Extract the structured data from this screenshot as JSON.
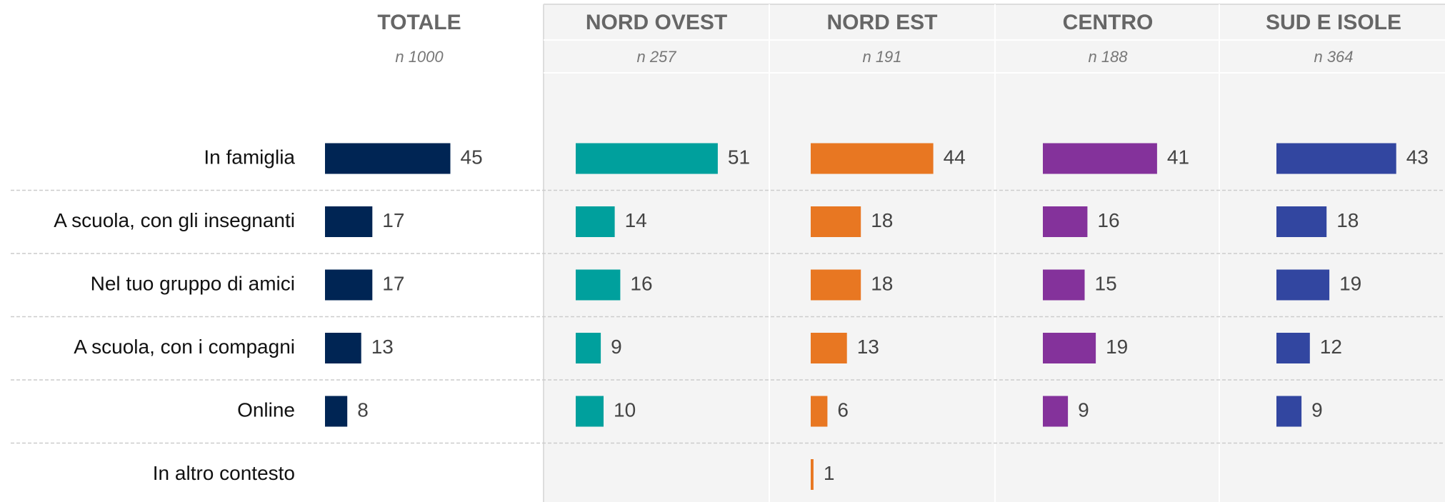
{
  "chart_data": {
    "type": "bar",
    "categories": [
      "In famiglia",
      "A scuola, con gli insegnanti",
      "Nel tuo gruppo di amici",
      "A scuola, con i compagni",
      "Online",
      "In altro contesto"
    ],
    "series": [
      {
        "name": "TOTALE",
        "note": "n 1000",
        "color": "#002554",
        "values": [
          45,
          17,
          17,
          13,
          8,
          null
        ]
      },
      {
        "name": "NORD OVEST",
        "note": "n 257",
        "color": "#00a09d",
        "values": [
          51,
          14,
          16,
          9,
          10,
          null
        ]
      },
      {
        "name": "NORD EST",
        "note": "n 191",
        "color": "#e87722",
        "values": [
          44,
          18,
          18,
          13,
          6,
          1
        ]
      },
      {
        "name": "CENTRO",
        "note": "n 188",
        "color": "#84329b",
        "values": [
          41,
          16,
          15,
          19,
          9,
          null
        ]
      },
      {
        "name": "SUD E ISOLE",
        "note": "n 364",
        "color": "#3246a0",
        "values": [
          43,
          18,
          19,
          12,
          9,
          null
        ]
      }
    ]
  }
}
